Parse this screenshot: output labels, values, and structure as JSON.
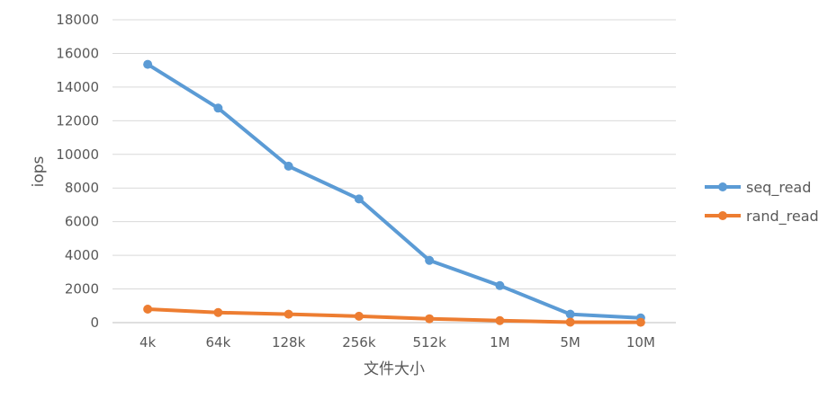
{
  "chart_data": {
    "type": "line",
    "title": "",
    "xlabel": "文件大小",
    "ylabel": "iops",
    "categories": [
      "4k",
      "64k",
      "128k",
      "256k",
      "512k",
      "1M",
      "5M",
      "10M"
    ],
    "ylim": [
      0,
      18000
    ],
    "yticks": [
      0,
      2000,
      4000,
      6000,
      8000,
      10000,
      12000,
      14000,
      16000,
      18000
    ],
    "grid": true,
    "legend_position": "right",
    "series": [
      {
        "name": "seq_read",
        "color": "#5B9BD5",
        "values": [
          15350,
          12750,
          9300,
          7350,
          3700,
          2200,
          500,
          280
        ]
      },
      {
        "name": "rand_read",
        "color": "#ED7D31",
        "values": [
          800,
          600,
          500,
          380,
          230,
          120,
          30,
          20
        ]
      }
    ]
  }
}
